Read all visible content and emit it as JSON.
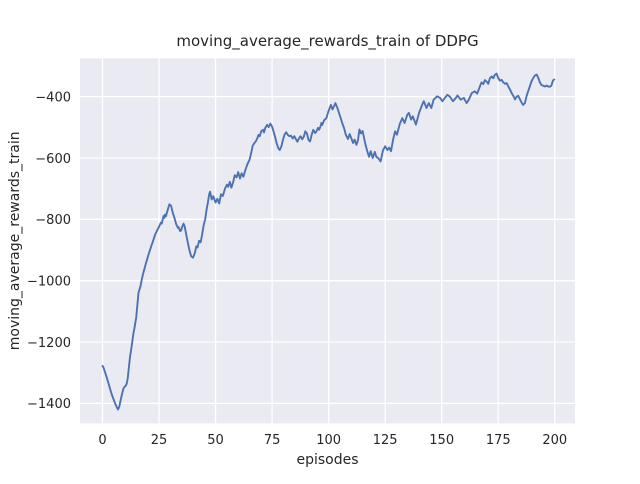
{
  "chart_data": {
    "type": "line",
    "title": "moving_average_rewards_train of DDPG",
    "xlabel": "episodes",
    "ylabel": "moving_average_rewards_train",
    "xlim": [
      -9.95,
      208.95
    ],
    "ylim": [
      -1465,
      -275
    ],
    "xticks": [
      0,
      25,
      50,
      75,
      100,
      125,
      150,
      175,
      200
    ],
    "yticks": [
      -400,
      -600,
      -800,
      -1000,
      -1200,
      -1400
    ],
    "xtick_labels": [
      "0",
      "25",
      "50",
      "75",
      "100",
      "125",
      "150",
      "175",
      "200"
    ],
    "ytick_labels": [
      "−400",
      "−600",
      "−800",
      "−1000",
      "−1200",
      "−1400"
    ],
    "grid": true,
    "legend": "none",
    "style": {
      "figure_bg": "#ffffff",
      "axes_bg": "#EAEAF2",
      "grid_color": "#ffffff",
      "line_color": "#4C72B0",
      "text_color": "#262626",
      "line_width": 1.9
    },
    "series": [
      {
        "name": "moving_average_rewards_train",
        "points": [
          [
            0,
            -1278
          ],
          [
            0.5,
            -1284
          ],
          [
            1.2,
            -1300
          ],
          [
            1.9,
            -1316
          ],
          [
            2.7,
            -1336
          ],
          [
            3.4,
            -1354
          ],
          [
            4.1,
            -1371
          ],
          [
            4.9,
            -1387
          ],
          [
            5.6,
            -1401
          ],
          [
            6.3,
            -1412
          ],
          [
            6.8,
            -1420
          ],
          [
            7.4,
            -1412
          ],
          [
            7.8,
            -1398
          ],
          [
            8.6,
            -1371
          ],
          [
            9.3,
            -1351
          ],
          [
            9.7,
            -1347
          ],
          [
            10.5,
            -1340
          ],
          [
            10.8,
            -1333
          ],
          [
            11.2,
            -1316
          ],
          [
            11.5,
            -1295
          ],
          [
            11.9,
            -1267
          ],
          [
            12.2,
            -1246
          ],
          [
            12.7,
            -1224
          ],
          [
            13,
            -1208
          ],
          [
            13.4,
            -1186
          ],
          [
            13.7,
            -1170
          ],
          [
            14.2,
            -1153
          ],
          [
            14.5,
            -1137
          ],
          [
            14.9,
            -1121
          ],
          [
            15.2,
            -1095
          ],
          [
            15.9,
            -1040
          ],
          [
            16.2,
            -1032
          ],
          [
            16.7,
            -1021
          ],
          [
            17.4,
            -996
          ],
          [
            18.1,
            -974
          ],
          [
            18.9,
            -952
          ],
          [
            19.6,
            -934
          ],
          [
            20.3,
            -916
          ],
          [
            21.1,
            -898
          ],
          [
            21.8,
            -882
          ],
          [
            22.6,
            -865
          ],
          [
            23.3,
            -849
          ],
          [
            24,
            -838
          ],
          [
            24.8,
            -827
          ],
          [
            25.5,
            -816
          ],
          [
            25.8,
            -811
          ],
          [
            26.2,
            -814
          ],
          [
            27,
            -789
          ],
          [
            27.4,
            -795
          ],
          [
            27.7,
            -784
          ],
          [
            28.1,
            -789
          ],
          [
            28.9,
            -767
          ],
          [
            29.6,
            -751
          ],
          [
            30.4,
            -757
          ],
          [
            30.7,
            -767
          ],
          [
            31.1,
            -778
          ],
          [
            31.8,
            -795
          ],
          [
            32.6,
            -816
          ],
          [
            33.3,
            -827
          ],
          [
            33.6,
            -825
          ],
          [
            34.3,
            -838
          ],
          [
            34.8,
            -836
          ],
          [
            35.1,
            -827
          ],
          [
            35.8,
            -814
          ],
          [
            36.3,
            -822
          ],
          [
            37,
            -849
          ],
          [
            37.7,
            -876
          ],
          [
            38.5,
            -903
          ],
          [
            39.2,
            -920
          ],
          [
            40,
            -925
          ],
          [
            40.8,
            -910
          ],
          [
            41.5,
            -888
          ],
          [
            42,
            -892
          ],
          [
            42.7,
            -870
          ],
          [
            43.4,
            -875
          ],
          [
            44,
            -852
          ],
          [
            44.7,
            -820
          ],
          [
            45.4,
            -800
          ],
          [
            46,
            -770
          ],
          [
            46.6,
            -745
          ],
          [
            47.2,
            -718
          ],
          [
            47.6,
            -710
          ],
          [
            48.3,
            -735
          ],
          [
            49,
            -725
          ],
          [
            50,
            -745
          ],
          [
            50.8,
            -733
          ],
          [
            51.6,
            -748
          ],
          [
            52.4,
            -718
          ],
          [
            53.2,
            -724
          ],
          [
            54.2,
            -699
          ],
          [
            55,
            -687
          ],
          [
            55.6,
            -694
          ],
          [
            56.3,
            -678
          ],
          [
            57,
            -697
          ],
          [
            57.8,
            -678
          ],
          [
            58.5,
            -656
          ],
          [
            59.3,
            -663
          ],
          [
            60,
            -646
          ],
          [
            60.8,
            -667
          ],
          [
            61.5,
            -650
          ],
          [
            62.3,
            -661
          ],
          [
            63,
            -643
          ],
          [
            64,
            -622
          ],
          [
            65,
            -606
          ],
          [
            65.7,
            -585
          ],
          [
            66.4,
            -560
          ],
          [
            67.1,
            -552
          ],
          [
            67.8,
            -546
          ],
          [
            68.5,
            -535
          ],
          [
            69,
            -525
          ],
          [
            69.5,
            -529
          ],
          [
            70.2,
            -513
          ],
          [
            71,
            -508
          ],
          [
            71.4,
            -517
          ],
          [
            72,
            -502
          ],
          [
            72.8,
            -492
          ],
          [
            73.5,
            -499
          ],
          [
            74.2,
            -488
          ],
          [
            75,
            -498
          ],
          [
            75.6,
            -513
          ],
          [
            76.3,
            -530
          ],
          [
            77,
            -551
          ],
          [
            77.7,
            -567
          ],
          [
            78.4,
            -574
          ],
          [
            79.1,
            -562
          ],
          [
            79.8,
            -540
          ],
          [
            80.5,
            -524
          ],
          [
            81.2,
            -516
          ],
          [
            82,
            -525
          ],
          [
            82.6,
            -529
          ],
          [
            83.3,
            -527
          ],
          [
            84.1,
            -536
          ],
          [
            84.8,
            -529
          ],
          [
            85.5,
            -538
          ],
          [
            86.2,
            -547
          ],
          [
            87,
            -535
          ],
          [
            87.6,
            -529
          ],
          [
            88.3,
            -539
          ],
          [
            89,
            -531
          ],
          [
            89.7,
            -513
          ],
          [
            90.4,
            -520
          ],
          [
            91.1,
            -541
          ],
          [
            91.8,
            -546
          ],
          [
            92.5,
            -524
          ],
          [
            93.2,
            -508
          ],
          [
            94,
            -519
          ],
          [
            94.6,
            -513
          ],
          [
            95.3,
            -502
          ],
          [
            95.8,
            -508
          ],
          [
            96.4,
            -497
          ],
          [
            96.8,
            -486
          ],
          [
            97.2,
            -492
          ],
          [
            98,
            -477
          ],
          [
            99,
            -470
          ],
          [
            99.6,
            -455
          ],
          [
            100.3,
            -440
          ],
          [
            101,
            -427
          ],
          [
            101.7,
            -442
          ],
          [
            102.4,
            -431
          ],
          [
            103,
            -421
          ],
          [
            103.9,
            -437
          ],
          [
            104.6,
            -453
          ],
          [
            105.3,
            -469
          ],
          [
            106,
            -486
          ],
          [
            106.8,
            -502
          ],
          [
            107.6,
            -524
          ],
          [
            108.5,
            -538
          ],
          [
            109.3,
            -522
          ],
          [
            110,
            -535
          ],
          [
            110.8,
            -551
          ],
          [
            111.5,
            -540
          ],
          [
            112.3,
            -557
          ],
          [
            113,
            -542
          ],
          [
            113.6,
            -507
          ],
          [
            114.3,
            -520
          ],
          [
            115,
            -512
          ],
          [
            115.8,
            -540
          ],
          [
            116.5,
            -562
          ],
          [
            117.2,
            -580
          ],
          [
            117.9,
            -596
          ],
          [
            118.6,
            -578
          ],
          [
            119.5,
            -600
          ],
          [
            120.4,
            -580
          ],
          [
            121.1,
            -596
          ],
          [
            122,
            -601
          ],
          [
            123,
            -611
          ],
          [
            124,
            -576
          ],
          [
            125,
            -562
          ],
          [
            126,
            -574
          ],
          [
            126.8,
            -566
          ],
          [
            127.6,
            -578
          ],
          [
            128.6,
            -537
          ],
          [
            129.4,
            -513
          ],
          [
            130.2,
            -524
          ],
          [
            131.5,
            -488
          ],
          [
            132.6,
            -470
          ],
          [
            133.6,
            -486
          ],
          [
            134.8,
            -459
          ],
          [
            135.5,
            -453
          ],
          [
            136.5,
            -475
          ],
          [
            137.2,
            -464
          ],
          [
            138.6,
            -491
          ],
          [
            140,
            -453
          ],
          [
            141.4,
            -426
          ],
          [
            142.1,
            -415
          ],
          [
            143.3,
            -437
          ],
          [
            144.3,
            -421
          ],
          [
            145.4,
            -437
          ],
          [
            146.4,
            -410
          ],
          [
            148,
            -399
          ],
          [
            149.3,
            -404
          ],
          [
            150.3,
            -415
          ],
          [
            151.4,
            -404
          ],
          [
            152.5,
            -394
          ],
          [
            153.5,
            -399
          ],
          [
            155,
            -415
          ],
          [
            156.3,
            -404
          ],
          [
            157,
            -396
          ],
          [
            158.4,
            -410
          ],
          [
            159.8,
            -404
          ],
          [
            161,
            -421
          ],
          [
            162,
            -410
          ],
          [
            163.3,
            -388
          ],
          [
            164.7,
            -383
          ],
          [
            165.7,
            -390
          ],
          [
            166.3,
            -378
          ],
          [
            167,
            -365
          ],
          [
            167.6,
            -354
          ],
          [
            168.4,
            -359
          ],
          [
            169.1,
            -346
          ],
          [
            170,
            -352
          ],
          [
            170.6,
            -358
          ],
          [
            171.3,
            -340
          ],
          [
            172.1,
            -334
          ],
          [
            172.8,
            -340
          ],
          [
            173.5,
            -329
          ],
          [
            174.3,
            -325
          ],
          [
            175,
            -339
          ],
          [
            175.7,
            -348
          ],
          [
            176.5,
            -345
          ],
          [
            177.2,
            -353
          ],
          [
            178,
            -358
          ],
          [
            178.7,
            -356
          ],
          [
            179.4,
            -366
          ],
          [
            180.2,
            -377
          ],
          [
            181,
            -389
          ],
          [
            181.7,
            -398
          ],
          [
            182.4,
            -409
          ],
          [
            183.1,
            -401
          ],
          [
            183.8,
            -397
          ],
          [
            184.6,
            -408
          ],
          [
            185.3,
            -419
          ],
          [
            186,
            -427
          ],
          [
            186.8,
            -421
          ],
          [
            187.5,
            -399
          ],
          [
            188.2,
            -383
          ],
          [
            189,
            -366
          ],
          [
            189.7,
            -350
          ],
          [
            190.5,
            -339
          ],
          [
            191.2,
            -331
          ],
          [
            192,
            -328
          ],
          [
            192.7,
            -339
          ],
          [
            193.4,
            -353
          ],
          [
            194.1,
            -362
          ],
          [
            195,
            -365
          ],
          [
            195.7,
            -367
          ],
          [
            196.4,
            -364
          ],
          [
            197.1,
            -367
          ],
          [
            197.8,
            -368
          ],
          [
            198.5,
            -364
          ],
          [
            199.2,
            -347
          ],
          [
            199.8,
            -344
          ]
        ]
      }
    ]
  }
}
